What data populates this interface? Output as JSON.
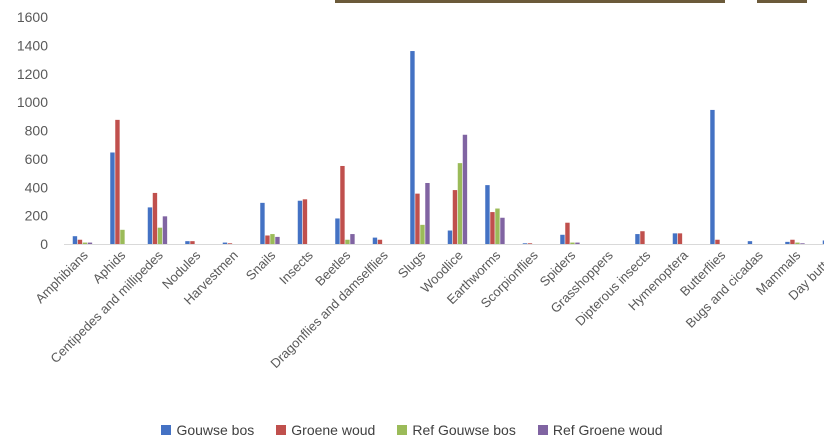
{
  "chart_data": {
    "type": "bar",
    "title": "",
    "xlabel": "",
    "ylabel": "",
    "ylim": [
      0,
      1600
    ],
    "yticks": [
      0,
      200,
      400,
      600,
      800,
      1000,
      1200,
      1400,
      1600
    ],
    "grid": false,
    "legend_position": "bottom",
    "categories": [
      "Amphibians",
      "Aphids",
      "Centipedes and millipedes",
      "Nodules",
      "Harvestmen",
      "Snails",
      "Insects",
      "Beetles",
      "Dragonflies and damselflies",
      "Slugs",
      "Woodlice",
      "Earthworms",
      "Scorpionflies",
      "Spiders",
      "Grasshoppers",
      "Dipterous insects",
      "Hymenoptera",
      "Butterflies",
      "Bugs and cicadas",
      "Mammals",
      "Day butterf"
    ],
    "series": [
      {
        "name": "Gouwse bos",
        "color": "#4472c4",
        "values": [
          55,
          645,
          258,
          20,
          10,
          290,
          305,
          180,
          45,
          1360,
          95,
          415,
          5,
          65,
          0,
          70,
          75,
          945,
          20,
          15,
          25
        ]
      },
      {
        "name": "Groene woud",
        "color": "#c0504d",
        "values": [
          30,
          875,
          360,
          20,
          5,
          60,
          315,
          550,
          30,
          355,
          380,
          225,
          5,
          150,
          0,
          90,
          75,
          30,
          0,
          30,
          0
        ]
      },
      {
        "name": "Ref Gouwse bos",
        "color": "#9bbb59",
        "values": [
          10,
          100,
          115,
          0,
          0,
          70,
          0,
          30,
          0,
          135,
          570,
          250,
          0,
          10,
          0,
          0,
          0,
          0,
          0,
          10,
          0
        ]
      },
      {
        "name": "Ref Groene woud",
        "color": "#8064a2",
        "values": [
          10,
          0,
          195,
          0,
          0,
          50,
          0,
          70,
          0,
          430,
          770,
          185,
          0,
          10,
          0,
          0,
          0,
          0,
          0,
          5,
          0
        ]
      }
    ]
  }
}
